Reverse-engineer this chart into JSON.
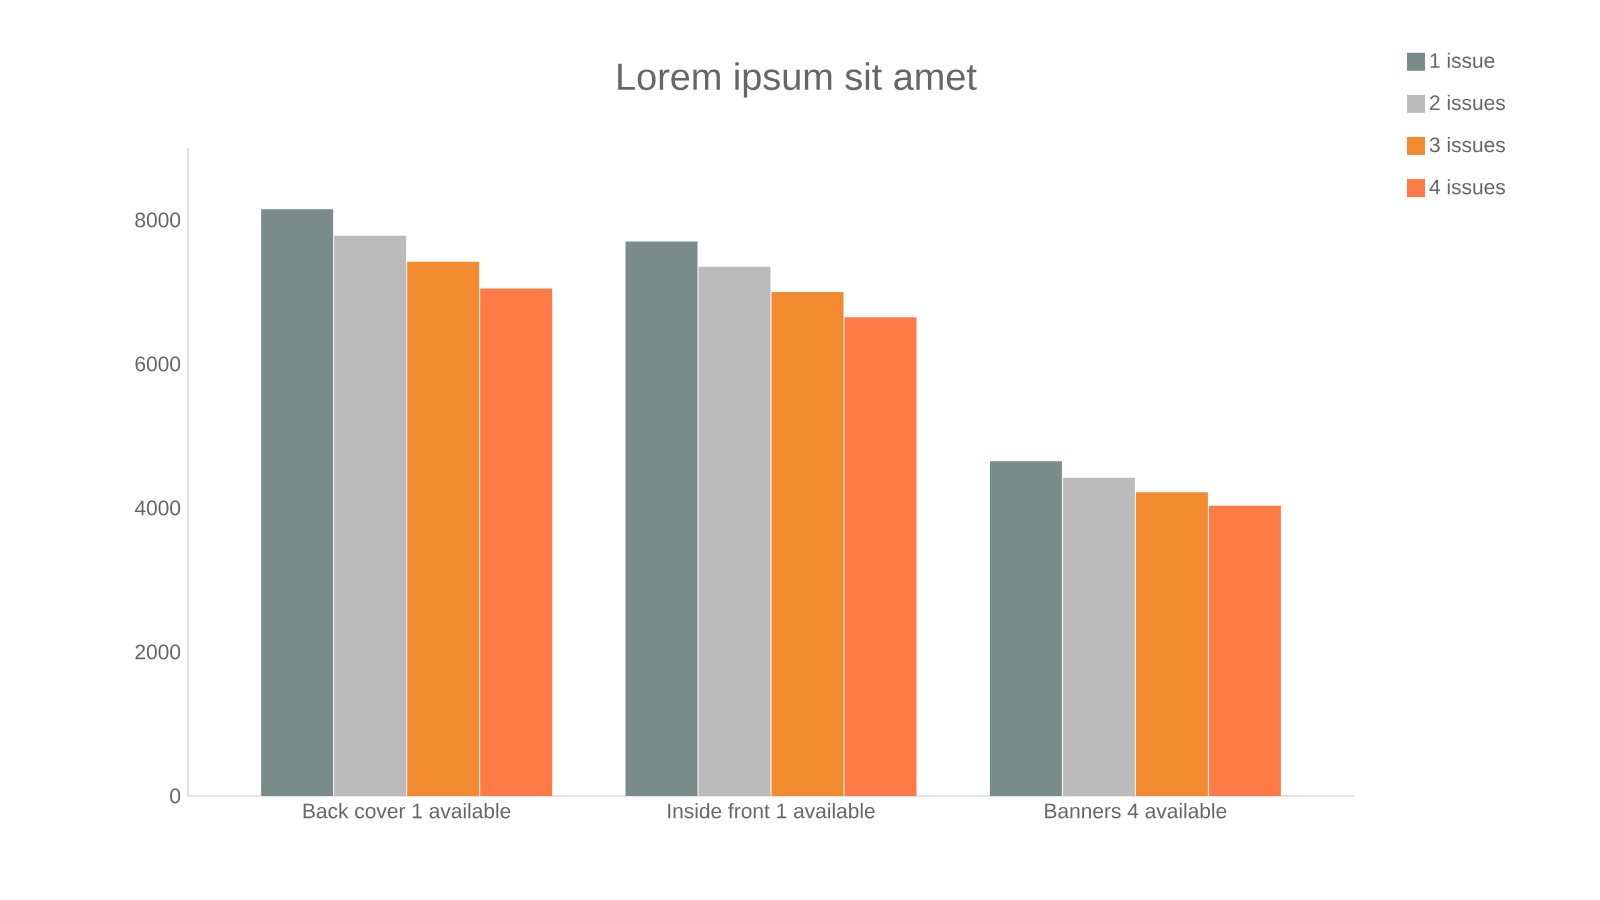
{
  "chart_data": {
    "type": "bar",
    "title": "Lorem ipsum sit amet",
    "categories": [
      "Back cover 1 available",
      "Inside front 1 available",
      "Banners 4 available"
    ],
    "series": [
      {
        "name": "1 issue",
        "color": "#7a8c89",
        "values": [
          8150,
          7700,
          4650
        ]
      },
      {
        "name": "2 issues",
        "color": "#bbbbbb",
        "values": [
          7780,
          7350,
          4420
        ]
      },
      {
        "name": "3 issues",
        "color": "#f28a30",
        "values": [
          7420,
          7000,
          4220
        ]
      },
      {
        "name": "4 issues",
        "color": "#ff7a45",
        "values": [
          7050,
          6650,
          4030
        ]
      }
    ],
    "ylim": [
      0,
      9000
    ],
    "yticks": [
      0,
      2000,
      4000,
      6000,
      8000
    ],
    "grid": false,
    "legend": "top right"
  }
}
